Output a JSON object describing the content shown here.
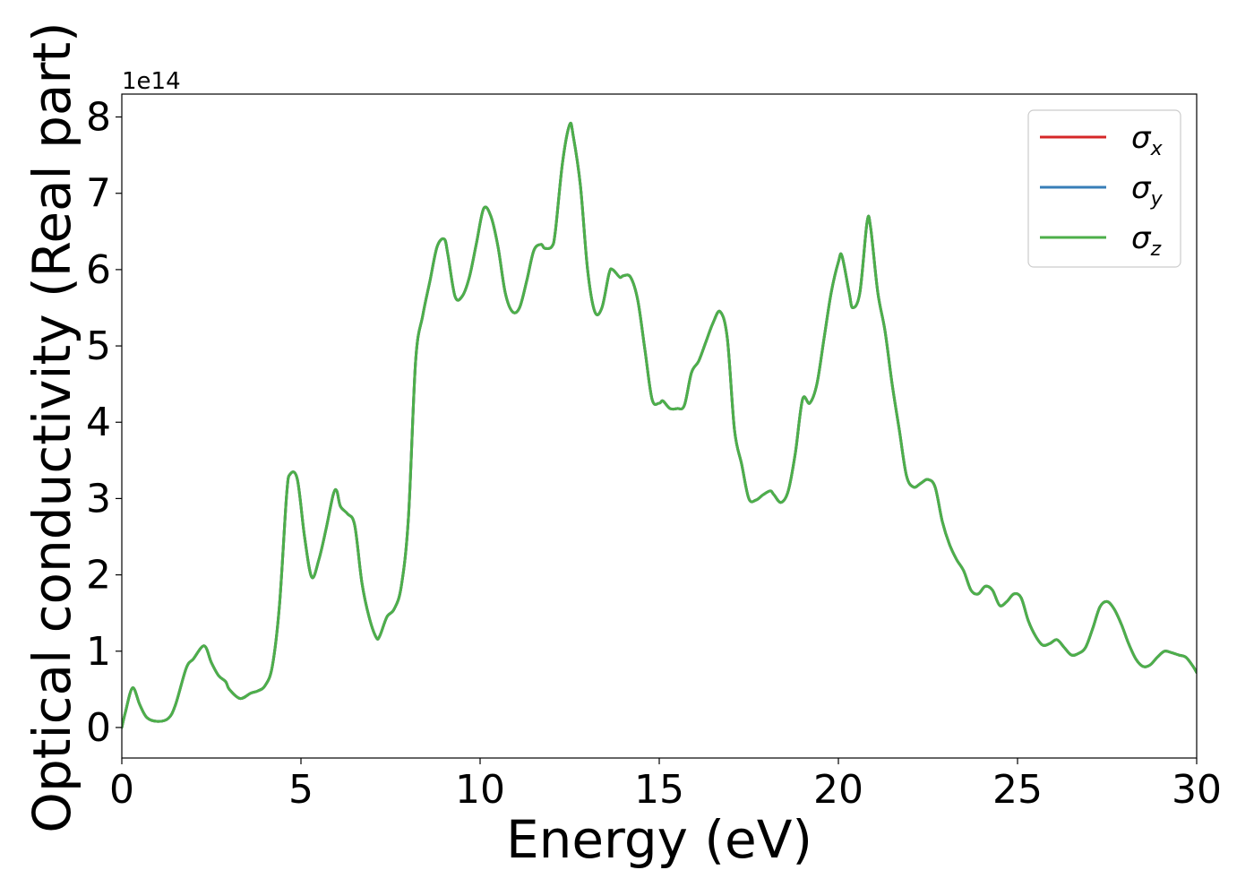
{
  "chart_data": {
    "type": "line",
    "xlabel": "Energy (eV)",
    "ylabel": "Optical conductivity (Real part)",
    "y_offset_text": "1e14",
    "xlim": [
      0,
      30
    ],
    "ylim": [
      -0.4,
      8.3
    ],
    "x_ticks": [
      0,
      5,
      10,
      15,
      20,
      25,
      30
    ],
    "x_tick_labels": [
      "0",
      "5",
      "10",
      "15",
      "20",
      "25",
      "30"
    ],
    "y_ticks": [
      0,
      1,
      2,
      3,
      4,
      5,
      6,
      7,
      8
    ],
    "y_tick_labels": [
      "0",
      "1",
      "2",
      "3",
      "4",
      "5",
      "6",
      "7",
      "8"
    ],
    "grid": false,
    "legend_position": "top-right",
    "series": [
      {
        "name": "σx",
        "legend_main": "σ",
        "legend_sub": "x",
        "color": "#d62728",
        "x": [
          0,
          0.1,
          0.3,
          0.5,
          0.7,
          1.0,
          1.3,
          1.5,
          1.8,
          2.0,
          2.3,
          2.5,
          2.7,
          2.9,
          3.0,
          3.3,
          3.6,
          3.8,
          4.0,
          4.2,
          4.4,
          4.6,
          4.7,
          4.9,
          5.1,
          5.3,
          5.5,
          5.7,
          5.9,
          6.0,
          6.1,
          6.3,
          6.5,
          6.7,
          6.9,
          7.1,
          7.2,
          7.4,
          7.6,
          7.8,
          8.0,
          8.2,
          8.4,
          8.6,
          8.8,
          9.0,
          9.1,
          9.3,
          9.5,
          9.7,
          9.9,
          10.1,
          10.3,
          10.5,
          10.7,
          10.9,
          11.1,
          11.3,
          11.5,
          11.7,
          11.8,
          12.0,
          12.1,
          12.3,
          12.5,
          12.6,
          12.8,
          13.0,
          13.2,
          13.4,
          13.6,
          13.7,
          13.9,
          14.0,
          14.2,
          14.4,
          14.6,
          14.8,
          15.0,
          15.1,
          15.3,
          15.5,
          15.7,
          15.9,
          16.1,
          16.3,
          16.5,
          16.7,
          16.9,
          17.1,
          17.3,
          17.5,
          17.7,
          17.9,
          18.1,
          18.2,
          18.4,
          18.6,
          18.8,
          19.0,
          19.2,
          19.4,
          19.6,
          19.8,
          20.0,
          20.1,
          20.3,
          20.4,
          20.6,
          20.8,
          20.9,
          21.1,
          21.3,
          21.5,
          21.7,
          21.9,
          22.1,
          22.3,
          22.5,
          22.7,
          22.9,
          23.1,
          23.3,
          23.5,
          23.7,
          23.9,
          24.1,
          24.3,
          24.5,
          24.7,
          24.9,
          25.1,
          25.3,
          25.5,
          25.7,
          25.9,
          26.1,
          26.3,
          26.5,
          26.7,
          26.9,
          27.1,
          27.3,
          27.5,
          27.7,
          27.9,
          28.1,
          28.3,
          28.5,
          28.7,
          28.9,
          29.1,
          29.3,
          29.5,
          29.7,
          29.9,
          30.0
        ],
        "y": [
          0,
          0.2,
          0.52,
          0.3,
          0.13,
          0.08,
          0.12,
          0.3,
          0.78,
          0.9,
          1.07,
          0.85,
          0.68,
          0.6,
          0.5,
          0.38,
          0.45,
          0.48,
          0.55,
          0.8,
          1.6,
          3.05,
          3.32,
          3.25,
          2.5,
          1.97,
          2.2,
          2.6,
          3.05,
          3.1,
          2.9,
          2.8,
          2.65,
          1.9,
          1.45,
          1.18,
          1.2,
          1.45,
          1.55,
          1.85,
          2.75,
          4.8,
          5.4,
          5.85,
          6.3,
          6.4,
          6.2,
          5.65,
          5.65,
          5.9,
          6.35,
          6.8,
          6.7,
          6.3,
          5.7,
          5.45,
          5.5,
          5.85,
          6.25,
          6.33,
          6.28,
          6.3,
          6.5,
          7.4,
          7.9,
          7.75,
          7.1,
          6.0,
          5.45,
          5.5,
          5.95,
          6.0,
          5.9,
          5.92,
          5.9,
          5.6,
          4.95,
          4.3,
          4.25,
          4.28,
          4.18,
          4.18,
          4.22,
          4.65,
          4.8,
          5.05,
          5.3,
          5.45,
          5.1,
          3.9,
          3.45,
          3.0,
          2.98,
          3.05,
          3.1,
          3.05,
          2.95,
          3.1,
          3.6,
          4.3,
          4.25,
          4.5,
          5.1,
          5.7,
          6.1,
          6.18,
          5.7,
          5.5,
          5.7,
          6.62,
          6.55,
          5.7,
          5.2,
          4.5,
          3.9,
          3.3,
          3.15,
          3.2,
          3.25,
          3.15,
          2.7,
          2.4,
          2.2,
          2.05,
          1.8,
          1.75,
          1.85,
          1.8,
          1.6,
          1.65,
          1.75,
          1.7,
          1.4,
          1.2,
          1.08,
          1.1,
          1.15,
          1.05,
          0.95,
          0.97,
          1.05,
          1.3,
          1.58,
          1.65,
          1.55,
          1.35,
          1.1,
          0.9,
          0.8,
          0.82,
          0.92,
          1.0,
          0.98,
          0.95,
          0.92,
          0.8,
          0.72
        ]
      },
      {
        "name": "σy",
        "legend_main": "σ",
        "legend_sub": "y",
        "color": "#377eb8",
        "same_as": 0
      },
      {
        "name": "σz",
        "legend_main": "σ",
        "legend_sub": "z",
        "color": "#4daf4a",
        "same_as": 0
      }
    ]
  }
}
